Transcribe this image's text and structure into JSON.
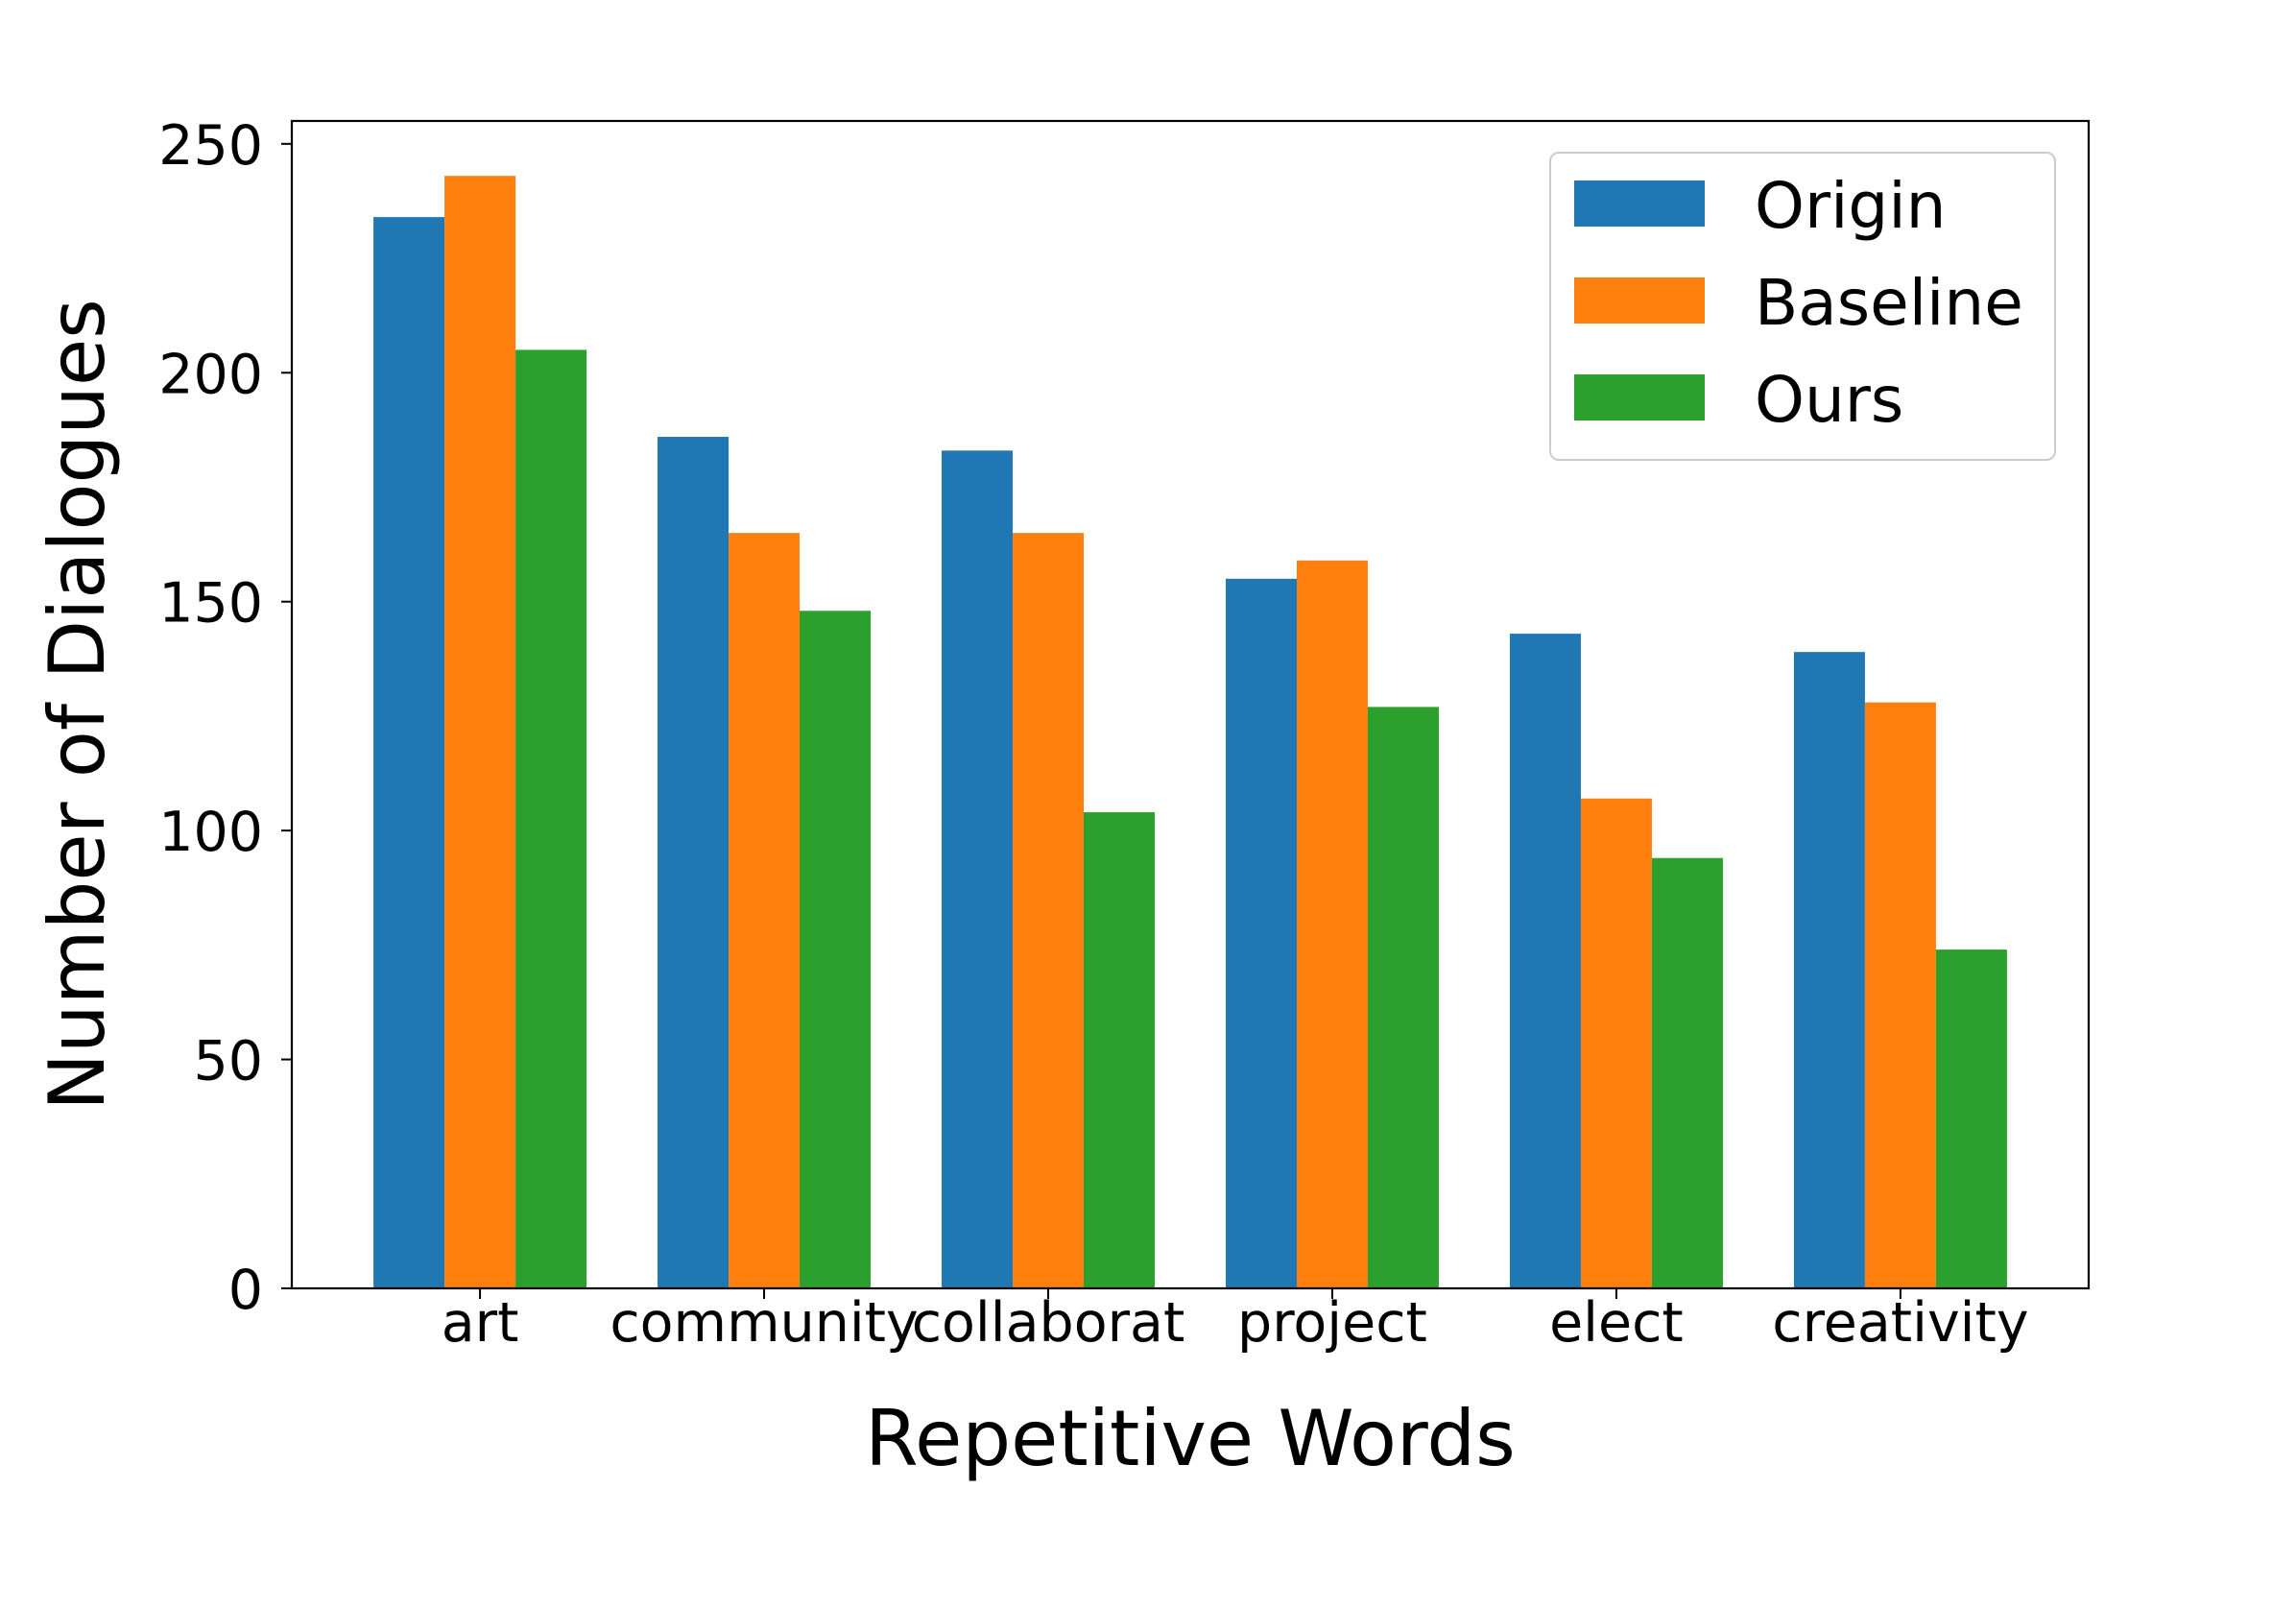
{
  "chart_data": {
    "type": "bar",
    "categories": [
      "art",
      "community",
      "collaborat",
      "project",
      "elect",
      "creativity"
    ],
    "series": [
      {
        "name": "Origin",
        "color": "#1f77b4",
        "values": [
          234,
          186,
          183,
          155,
          143,
          139
        ]
      },
      {
        "name": "Baseline",
        "color": "#ff7f0e",
        "values": [
          243,
          165,
          165,
          159,
          107,
          128
        ]
      },
      {
        "name": "Ours",
        "color": "#2ca02c",
        "values": [
          205,
          148,
          104,
          127,
          94,
          74
        ]
      }
    ],
    "xlabel": "Repetitive Words",
    "ylabel": "Number of Dialogues",
    "ylim": [
      0,
      255
    ],
    "yticks": [
      0,
      50,
      100,
      150,
      200,
      250
    ],
    "grid": false,
    "legend": "top-right"
  }
}
